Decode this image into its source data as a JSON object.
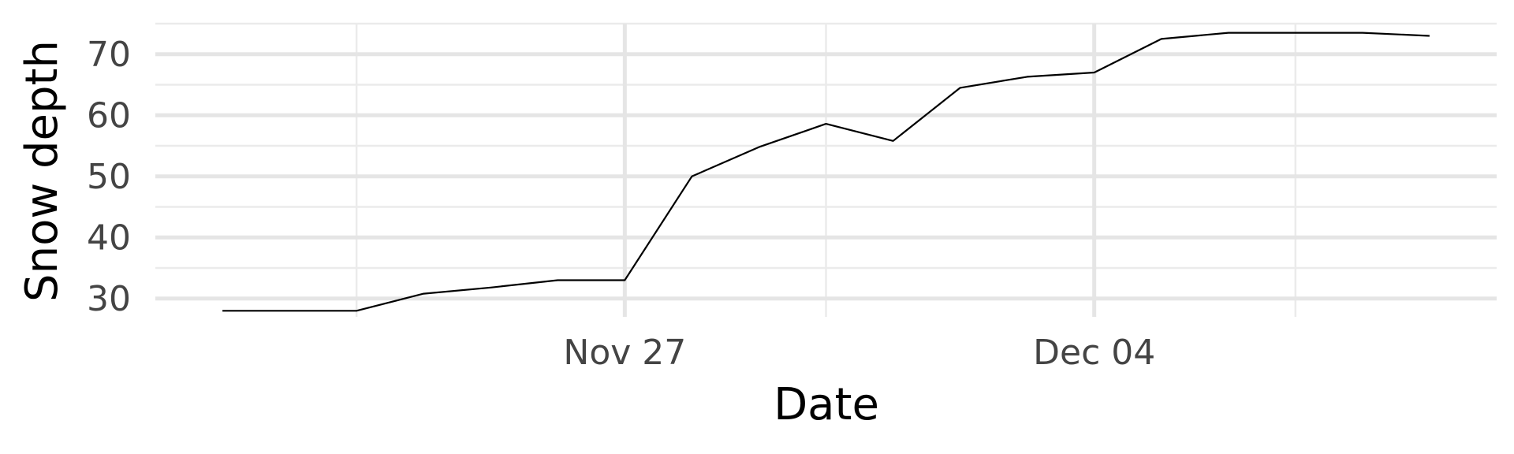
{
  "chart_data": {
    "type": "line",
    "title": "",
    "xlabel": "Date",
    "ylabel": "Snow depth",
    "x_axis_type": "date",
    "xlim": [
      "2023-11-20",
      "2023-12-10"
    ],
    "ylim": [
      27,
      75
    ],
    "x_ticks": [
      {
        "value": "2023-11-27",
        "label": "Nov 27"
      },
      {
        "value": "2023-12-04",
        "label": "Dec 04"
      }
    ],
    "x_minor_ticks": [
      "2023-11-23",
      "2023-11-30",
      "2023-12-07"
    ],
    "y_ticks": [
      30,
      40,
      50,
      60,
      70
    ],
    "y_minor_ticks": [
      35,
      45,
      55,
      65,
      75
    ],
    "grid": true,
    "series": [
      {
        "color": "#000000",
        "x": [
          "2023-11-21",
          "2023-11-22",
          "2023-11-23",
          "2023-11-24",
          "2023-11-25",
          "2023-11-26",
          "2023-11-27",
          "2023-11-28",
          "2023-11-29",
          "2023-11-30",
          "2023-12-01",
          "2023-12-02",
          "2023-12-03",
          "2023-12-04",
          "2023-12-05",
          "2023-12-06",
          "2023-12-07",
          "2023-12-08",
          "2023-12-09"
        ],
        "values": [
          28,
          28,
          28,
          30.8,
          31.8,
          33,
          33,
          50,
          54.8,
          58.6,
          55.8,
          64.5,
          66.3,
          67,
          72.5,
          73.5,
          73.5,
          73.5,
          73
        ]
      }
    ]
  }
}
